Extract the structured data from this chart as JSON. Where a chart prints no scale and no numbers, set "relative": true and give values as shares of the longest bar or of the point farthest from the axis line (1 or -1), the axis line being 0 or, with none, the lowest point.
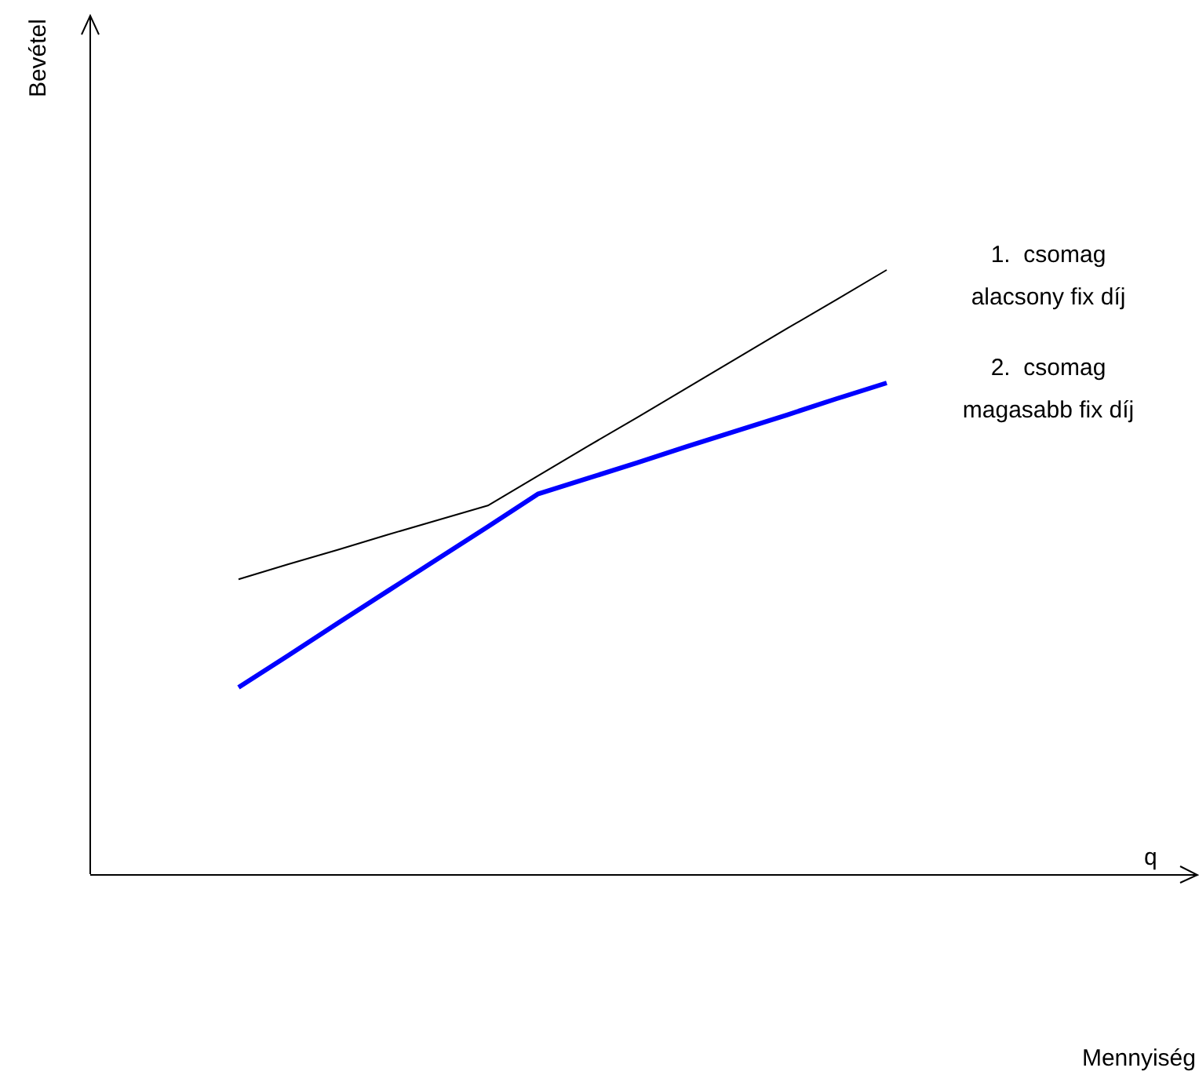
{
  "chart_data": {
    "type": "line",
    "relative": true,
    "annotations": [
      "Bevétel",
      "q",
      "Mennyiség"
    ],
    "legend": false,
    "marker": "none",
    "line_style": "solid",
    "categories": [
      null,
      null,
      null,
      null,
      null,
      null,
      null,
      null,
      null,
      null,
      null,
      null,
      null,
      null
    ],
    "series": [
      {
        "name": "1.  csomag\nalacsony fix díj",
        "color": "#000000",
        "values": [
          0.488,
          0.513,
          0.537,
          0.562,
          0.586,
          0.61,
          0.659,
          0.708,
          0.756,
          0.805,
          0.854,
          0.903,
          0.951,
          1.0
        ]
      },
      {
        "name": "2.  csomag\nmagasabb fix díj",
        "color": "#0000ff",
        "values": [
          0.309,
          0.362,
          0.416,
          0.469,
          0.522,
          0.575,
          0.629,
          0.655,
          0.681,
          0.708,
          0.734,
          0.76,
          0.787,
          0.813
        ]
      }
    ]
  }
}
